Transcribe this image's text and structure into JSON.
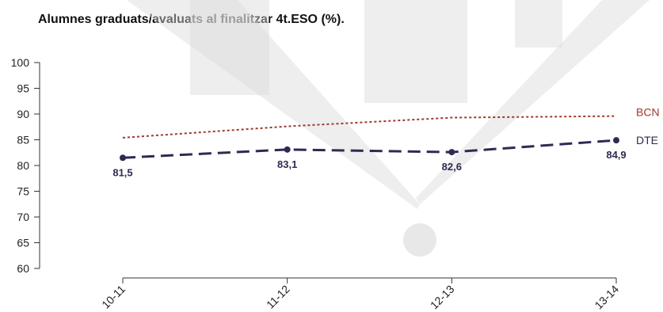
{
  "chart_data": {
    "type": "line",
    "title": "Alumnes graduats/avaluats al finalitzar 4t.ESO (%).",
    "categories": [
      "10-11",
      "11-12",
      "12-13",
      "13-14"
    ],
    "ylim": [
      60,
      100
    ],
    "yticks": [
      60,
      65,
      70,
      75,
      80,
      85,
      90,
      95,
      100
    ],
    "grid": false,
    "series": [
      {
        "name": "BCN",
        "values": [
          85.4,
          87.6,
          89.3,
          89.6
        ],
        "color": "#a0392a",
        "style": "dotted",
        "show_labels": false
      },
      {
        "name": "DTE",
        "values": [
          81.5,
          83.1,
          82.6,
          84.9
        ],
        "labels": [
          "81,5",
          "83,1",
          "82,6",
          "84,9"
        ],
        "color": "#2d2b52",
        "style": "dashed",
        "show_labels": true
      }
    ],
    "watermark_color": "#d9d9d9"
  }
}
